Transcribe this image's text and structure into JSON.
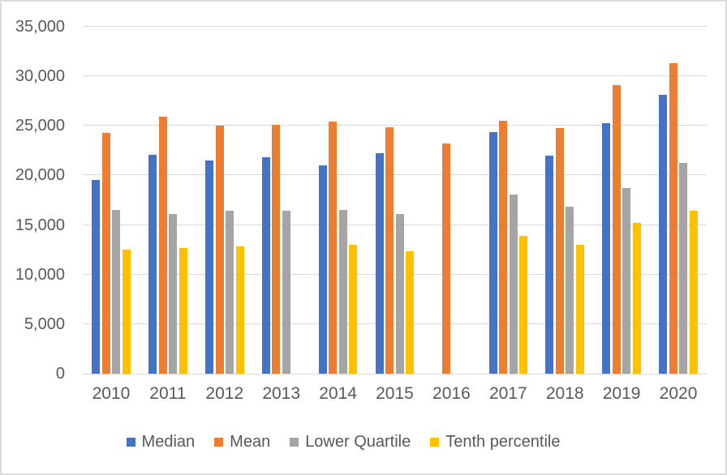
{
  "chart_data": {
    "type": "bar",
    "title": "",
    "xlabel": "",
    "ylabel": "",
    "categories": [
      "2010",
      "2011",
      "2012",
      "2013",
      "2014",
      "2015",
      "2016",
      "2017",
      "2018",
      "2019",
      "2020"
    ],
    "series": [
      {
        "name": "Median",
        "color": "#4472C4",
        "values": [
          19550,
          22100,
          21500,
          21800,
          21000,
          22250,
          null,
          24400,
          22000,
          25300,
          28100
        ]
      },
      {
        "name": "Mean",
        "color": "#ED7D31",
        "values": [
          24300,
          25900,
          25050,
          25100,
          25450,
          24900,
          23250,
          25550,
          24800,
          29150,
          31300
        ]
      },
      {
        "name": "Lower Quartile",
        "color": "#A5A5A5",
        "values": [
          16500,
          16100,
          16400,
          16400,
          16500,
          16100,
          null,
          18050,
          16850,
          18750,
          21300
        ]
      },
      {
        "name": "Tenth percentile",
        "color": "#FFC000",
        "values": [
          12500,
          12700,
          12800,
          null,
          13000,
          12350,
          null,
          13900,
          13000,
          15200,
          16400
        ]
      }
    ],
    "ylim": [
      0,
      35000
    ],
    "ytick_step": 5000,
    "yticks": [
      0,
      5000,
      10000,
      15000,
      20000,
      25000,
      30000,
      35000
    ],
    "ytick_labels": [
      "0",
      "5,000",
      "10,000",
      "15,000",
      "20,000",
      "25,000",
      "30,000",
      "35,000"
    ],
    "grid": true,
    "legend_position": "bottom"
  },
  "style": {
    "gridline_color": "#D9D9D9",
    "axis_text_color": "#595959",
    "frame_border_color": "#DCDCDC",
    "background": "#FFFFFF"
  }
}
